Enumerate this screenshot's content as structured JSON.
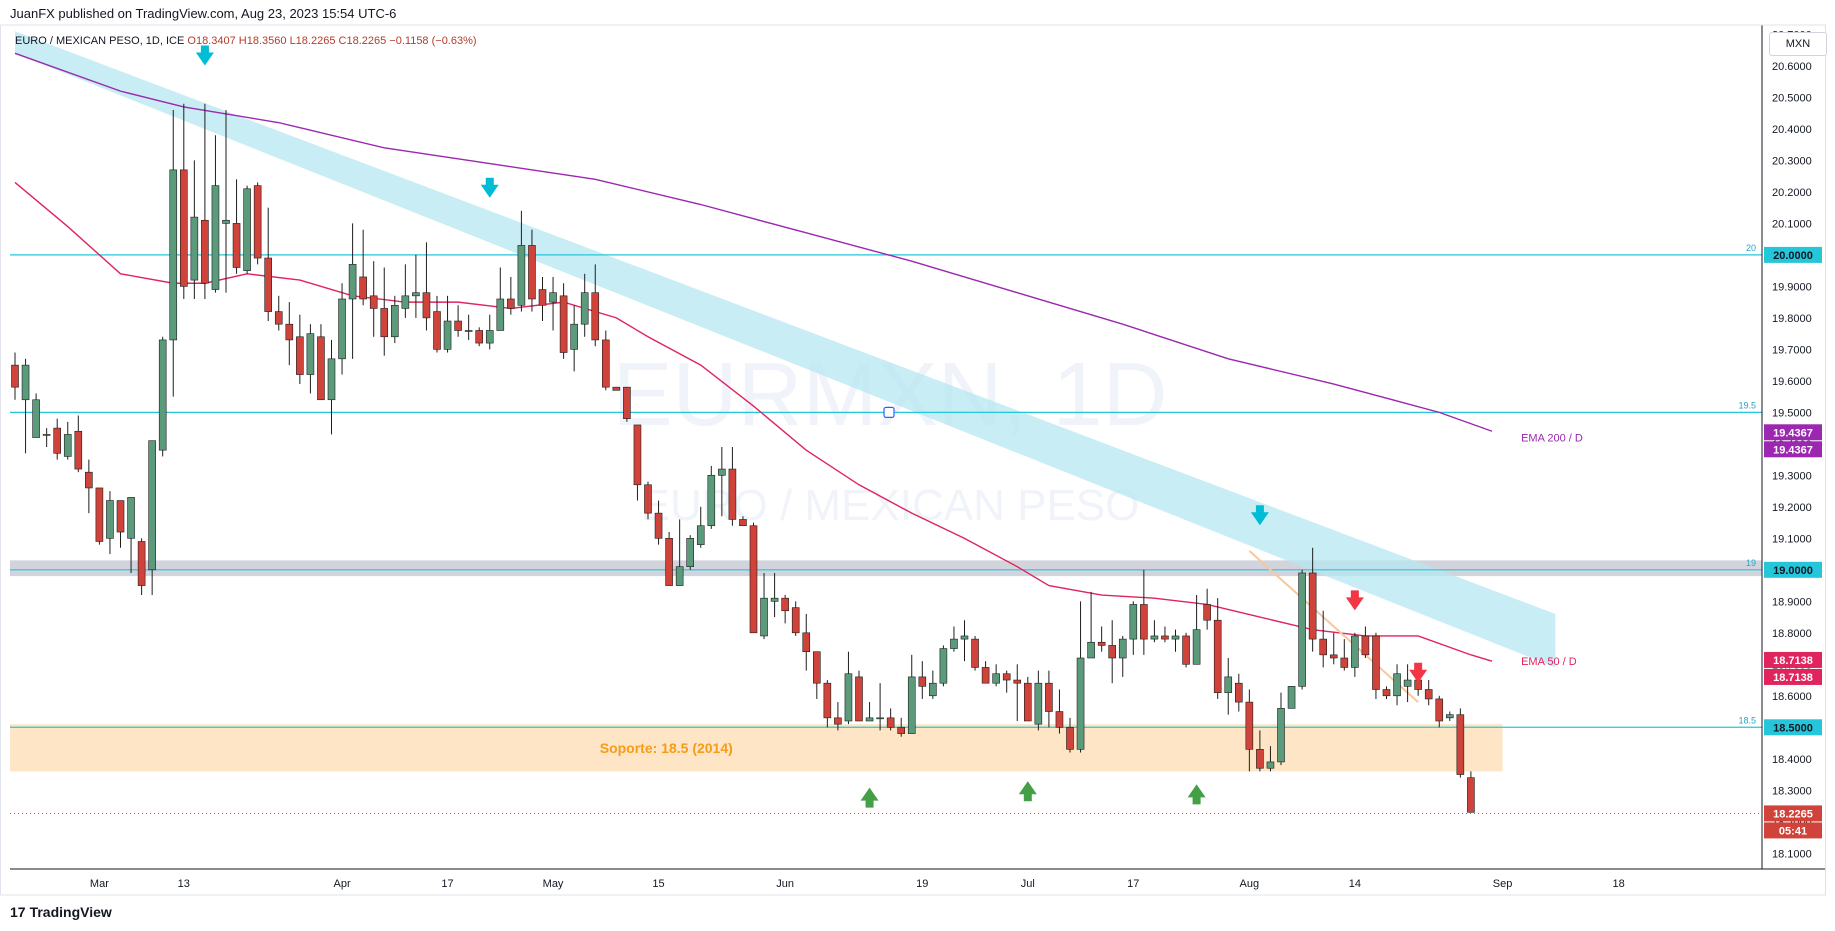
{
  "header": {
    "published": "JuanFX published on TradingView.com, Aug 23, 2023 15:54 UTC-6"
  },
  "symbol": {
    "name": "EURO / MEXICAN PESO, 1D, ICE",
    "open": "O18.3407",
    "high": "H18.3560",
    "low": "L18.2265",
    "close": "C18.2265",
    "change": "−0.1158 (−0.63%)"
  },
  "currency": "MXN",
  "watermark": {
    "ticker": "EURMXN, 1D",
    "name": "EURO / MEXICAN PESO"
  },
  "footer": {
    "brand": "TradingView",
    "mark": "17"
  },
  "colors": {
    "up": "#5b9a7b",
    "down": "#d0433a",
    "ema50": "#e0245e",
    "ema200": "#9c27b0",
    "channel": "#b7e7f0",
    "hline": "#26c6da",
    "support": "#fde5c5",
    "support_text": "#f59c1a"
  },
  "chart_data": {
    "type": "candlestick",
    "title": "EURO / MEXICAN PESO, 1D, ICE",
    "ylim": [
      18.05,
      20.73
    ],
    "y_ticks": [
      18.1,
      18.2,
      18.3,
      18.4,
      18.5,
      18.6,
      18.7,
      18.8,
      18.9,
      19.0,
      19.1,
      19.2,
      19.3,
      19.4,
      19.5,
      19.6,
      19.7,
      19.8,
      19.9,
      20.0,
      20.1,
      20.2,
      20.3,
      20.4,
      20.5,
      20.6,
      20.7
    ],
    "x_start": "2023-02-17",
    "x_labels": [
      {
        "label": "Mar",
        "index": 8
      },
      {
        "label": "13",
        "index": 16
      },
      {
        "label": "Apr",
        "index": 31
      },
      {
        "label": "17",
        "index": 41
      },
      {
        "label": "May",
        "index": 51
      },
      {
        "label": "15",
        "index": 61
      },
      {
        "label": "Jun",
        "index": 73
      },
      {
        "label": "19",
        "index": 86
      },
      {
        "label": "Jul",
        "index": 96
      },
      {
        "label": "17",
        "index": 106
      },
      {
        "label": "Aug",
        "index": 117
      },
      {
        "label": "14",
        "index": 127
      },
      {
        "label": "Sep",
        "index": 141
      },
      {
        "label": "18",
        "index": 152
      }
    ],
    "candles": [
      [
        19.65,
        19.58,
        19.69,
        19.54
      ],
      [
        19.54,
        19.65,
        19.67,
        19.37
      ],
      [
        19.42,
        19.54,
        19.56,
        19.42
      ],
      [
        19.43,
        19.43,
        19.45,
        19.39
      ],
      [
        19.45,
        19.37,
        19.48,
        19.35
      ],
      [
        19.36,
        19.43,
        19.47,
        19.35
      ],
      [
        19.44,
        19.32,
        19.49,
        19.31
      ],
      [
        19.31,
        19.26,
        19.35,
        19.18
      ],
      [
        19.26,
        19.09,
        19.26,
        19.08
      ],
      [
        19.1,
        19.22,
        19.25,
        19.05
      ],
      [
        19.22,
        19.12,
        19.22,
        19.07
      ],
      [
        19.1,
        19.23,
        19.23,
        18.99
      ],
      [
        19.09,
        18.95,
        19.1,
        18.92
      ],
      [
        19.0,
        19.41,
        19.41,
        18.92
      ],
      [
        19.38,
        19.73,
        19.74,
        19.36
      ],
      [
        19.73,
        20.27,
        20.46,
        19.55
      ],
      [
        20.27,
        19.9,
        20.48,
        19.86
      ],
      [
        19.92,
        20.12,
        20.3,
        19.86
      ],
      [
        20.11,
        19.91,
        20.48,
        19.86
      ],
      [
        19.89,
        20.22,
        20.38,
        19.88
      ],
      [
        20.1,
        20.11,
        20.46,
        19.88
      ],
      [
        20.1,
        19.96,
        20.24,
        19.94
      ],
      [
        19.95,
        20.21,
        20.22,
        19.94
      ],
      [
        20.22,
        19.99,
        20.23,
        19.97
      ],
      [
        19.99,
        19.82,
        20.15,
        19.79
      ],
      [
        19.82,
        19.78,
        19.87,
        19.76
      ],
      [
        19.78,
        19.73,
        19.85,
        19.65
      ],
      [
        19.74,
        19.62,
        19.81,
        19.59
      ],
      [
        19.62,
        19.75,
        19.78,
        19.56
      ],
      [
        19.74,
        19.54,
        19.78,
        19.54
      ],
      [
        19.54,
        19.67,
        19.73,
        19.43
      ],
      [
        19.67,
        19.86,
        19.91,
        19.62
      ],
      [
        19.86,
        19.97,
        20.1,
        19.67
      ],
      [
        19.93,
        19.86,
        20.08,
        19.84
      ],
      [
        19.87,
        19.83,
        19.98,
        19.74
      ],
      [
        19.83,
        19.74,
        19.96,
        19.68
      ],
      [
        19.74,
        19.84,
        19.87,
        19.72
      ],
      [
        19.83,
        19.87,
        19.97,
        19.8
      ],
      [
        19.87,
        19.88,
        20.0,
        19.8
      ],
      [
        19.88,
        19.8,
        20.04,
        19.76
      ],
      [
        19.82,
        19.7,
        19.87,
        19.69
      ],
      [
        19.7,
        19.79,
        19.87,
        19.69
      ],
      [
        19.79,
        19.76,
        19.84,
        19.74
      ],
      [
        19.76,
        19.76,
        19.81,
        19.73
      ],
      [
        19.76,
        19.72,
        19.77,
        19.71
      ],
      [
        19.72,
        19.76,
        19.81,
        19.7
      ],
      [
        19.76,
        19.86,
        19.96,
        19.76
      ],
      [
        19.86,
        19.83,
        19.93,
        19.81
      ],
      [
        19.84,
        20.03,
        20.14,
        19.82
      ],
      [
        20.03,
        19.86,
        20.08,
        19.82
      ],
      [
        19.89,
        19.84,
        19.93,
        19.79
      ],
      [
        19.85,
        19.88,
        19.93,
        19.76
      ],
      [
        19.87,
        19.69,
        19.91,
        19.67
      ],
      [
        19.7,
        19.78,
        19.84,
        19.63
      ],
      [
        19.78,
        19.88,
        19.94,
        19.74
      ],
      [
        19.88,
        19.73,
        19.97,
        19.71
      ],
      [
        19.73,
        19.58,
        19.76,
        19.57
      ],
      [
        19.58,
        19.57,
        19.58,
        19.57
      ],
      [
        19.58,
        19.48,
        19.58,
        19.47
      ],
      [
        19.46,
        19.27,
        19.46,
        19.22
      ],
      [
        19.27,
        19.18,
        19.28,
        19.16
      ],
      [
        19.18,
        19.1,
        19.22,
        19.08
      ],
      [
        19.1,
        18.95,
        19.12,
        18.95
      ],
      [
        18.95,
        19.01,
        19.16,
        18.95
      ],
      [
        19.01,
        19.1,
        19.11,
        19.0
      ],
      [
        19.08,
        19.14,
        19.2,
        19.07
      ],
      [
        19.14,
        19.3,
        19.33,
        19.13
      ],
      [
        19.3,
        19.32,
        19.39,
        19.17
      ],
      [
        19.32,
        19.16,
        19.39,
        19.14
      ],
      [
        19.16,
        19.14,
        19.17,
        19.14
      ],
      [
        19.14,
        18.8,
        19.15,
        18.8
      ],
      [
        18.79,
        18.91,
        18.99,
        18.78
      ],
      [
        18.9,
        18.91,
        18.99,
        18.85
      ],
      [
        18.91,
        18.87,
        18.92,
        18.83
      ],
      [
        18.88,
        18.8,
        18.9,
        18.79
      ],
      [
        18.8,
        18.74,
        18.86,
        18.68
      ],
      [
        18.74,
        18.64,
        18.74,
        18.59
      ],
      [
        18.64,
        18.53,
        18.65,
        18.5
      ],
      [
        18.53,
        18.51,
        18.58,
        18.49
      ],
      [
        18.52,
        18.67,
        18.74,
        18.51
      ],
      [
        18.66,
        18.52,
        18.68,
        18.52
      ],
      [
        18.52,
        18.53,
        18.58,
        18.52
      ],
      [
        18.53,
        18.53,
        18.64,
        18.49
      ],
      [
        18.53,
        18.5,
        18.56,
        18.49
      ],
      [
        18.5,
        18.48,
        18.53,
        18.47
      ],
      [
        18.48,
        18.66,
        18.73,
        18.48
      ],
      [
        18.66,
        18.63,
        18.71,
        18.59
      ],
      [
        18.6,
        18.64,
        18.68,
        18.59
      ],
      [
        18.64,
        18.75,
        18.76,
        18.63
      ],
      [
        18.75,
        18.78,
        18.82,
        18.74
      ],
      [
        18.78,
        18.79,
        18.84,
        18.71
      ],
      [
        18.78,
        18.69,
        18.79,
        18.68
      ],
      [
        18.69,
        18.64,
        18.71,
        18.64
      ],
      [
        18.64,
        18.67,
        18.7,
        18.63
      ],
      [
        18.67,
        18.65,
        18.68,
        18.61
      ],
      [
        18.65,
        18.64,
        18.7,
        18.52
      ],
      [
        18.64,
        18.52,
        18.66,
        18.52
      ],
      [
        18.51,
        18.64,
        18.68,
        18.49
      ],
      [
        18.64,
        18.55,
        18.68,
        18.5
      ],
      [
        18.55,
        18.5,
        18.62,
        18.48
      ],
      [
        18.5,
        18.43,
        18.53,
        18.42
      ],
      [
        18.43,
        18.72,
        18.9,
        18.42
      ],
      [
        18.72,
        18.77,
        18.93,
        18.75
      ],
      [
        18.77,
        18.76,
        18.82,
        18.74
      ],
      [
        18.76,
        18.72,
        18.84,
        18.64
      ],
      [
        18.72,
        18.78,
        18.79,
        18.66
      ],
      [
        18.78,
        18.89,
        18.9,
        18.73
      ],
      [
        18.89,
        18.78,
        19.0,
        18.73
      ],
      [
        18.78,
        18.79,
        18.84,
        18.77
      ],
      [
        18.79,
        18.78,
        18.82,
        18.77
      ],
      [
        18.78,
        18.79,
        18.81,
        18.74
      ],
      [
        18.79,
        18.7,
        18.8,
        18.69
      ],
      [
        18.7,
        18.81,
        18.92,
        18.7
      ],
      [
        18.89,
        18.84,
        18.94,
        18.81
      ],
      [
        18.84,
        18.61,
        18.91,
        18.59
      ],
      [
        18.61,
        18.66,
        18.72,
        18.54
      ],
      [
        18.64,
        18.58,
        18.67,
        18.55
      ],
      [
        18.58,
        18.43,
        18.62,
        18.36
      ],
      [
        18.43,
        18.37,
        18.49,
        18.36
      ],
      [
        18.37,
        18.39,
        18.44,
        18.36
      ],
      [
        18.39,
        18.56,
        18.61,
        18.38
      ],
      [
        18.56,
        18.63,
        18.63,
        18.56
      ],
      [
        18.63,
        18.99,
        19.0,
        18.62
      ],
      [
        18.99,
        18.78,
        19.07,
        18.74
      ],
      [
        18.78,
        18.73,
        18.87,
        18.69
      ],
      [
        18.73,
        18.72,
        18.8,
        18.7
      ],
      [
        18.72,
        18.69,
        18.78,
        18.68
      ],
      [
        18.69,
        18.79,
        18.8,
        18.66
      ],
      [
        18.79,
        18.73,
        18.82,
        18.72
      ],
      [
        18.79,
        18.62,
        18.8,
        18.59
      ],
      [
        18.62,
        18.6,
        18.63,
        18.59
      ],
      [
        18.6,
        18.67,
        18.7,
        18.57
      ],
      [
        18.63,
        18.65,
        18.7,
        18.58
      ],
      [
        18.65,
        18.62,
        18.68,
        18.6
      ],
      [
        18.62,
        18.59,
        18.65,
        18.57
      ],
      [
        18.59,
        18.52,
        18.6,
        18.5
      ],
      [
        18.53,
        18.54,
        18.55,
        18.52
      ],
      [
        18.54,
        18.35,
        18.56,
        18.34
      ],
      [
        18.34,
        18.23,
        18.36,
        18.23
      ]
    ],
    "ema200": [
      [
        0,
        20.64
      ],
      [
        10,
        20.52
      ],
      [
        16,
        20.47
      ],
      [
        25,
        20.42
      ],
      [
        35,
        20.34
      ],
      [
        45,
        20.29
      ],
      [
        55,
        20.24
      ],
      [
        65,
        20.16
      ],
      [
        75,
        20.07
      ],
      [
        85,
        19.98
      ],
      [
        95,
        19.88
      ],
      [
        105,
        19.78
      ],
      [
        115,
        19.67
      ],
      [
        125,
        19.59
      ],
      [
        135,
        19.5
      ],
      [
        140,
        19.44
      ]
    ],
    "ema50": [
      [
        0,
        20.23
      ],
      [
        5,
        20.09
      ],
      [
        10,
        19.94
      ],
      [
        15,
        19.91
      ],
      [
        18,
        19.91
      ],
      [
        22,
        19.94
      ],
      [
        27,
        19.92
      ],
      [
        32,
        19.87
      ],
      [
        37,
        19.85
      ],
      [
        42,
        19.85
      ],
      [
        47,
        19.83
      ],
      [
        52,
        19.85
      ],
      [
        57,
        19.8
      ],
      [
        60,
        19.74
      ],
      [
        65,
        19.65
      ],
      [
        70,
        19.52
      ],
      [
        75,
        19.38
      ],
      [
        80,
        19.27
      ],
      [
        85,
        19.18
      ],
      [
        90,
        19.1
      ],
      [
        95,
        19.01
      ],
      [
        98,
        18.95
      ],
      [
        103,
        18.92
      ],
      [
        108,
        18.91
      ],
      [
        113,
        18.89
      ],
      [
        118,
        18.85
      ],
      [
        123,
        18.81
      ],
      [
        128,
        18.79
      ],
      [
        133,
        18.79
      ],
      [
        138,
        18.73
      ],
      [
        140,
        18.71
      ]
    ],
    "channel": {
      "upper_start": [
        0,
        20.71
      ],
      "upper_end": [
        146,
        18.86
      ],
      "lower_start": [
        0,
        20.64
      ],
      "lower_end": [
        146,
        18.69
      ]
    },
    "horizontal_lines": [
      {
        "value": 20.0,
        "label": "20",
        "price_tag": "20.0000"
      },
      {
        "value": 19.5,
        "label": "19.5",
        "price_tag": ""
      },
      {
        "value": 19.0,
        "label": "19",
        "price_tag": "19.0000"
      },
      {
        "value": 18.5,
        "label": "18.5",
        "price_tag": "18.5000"
      }
    ],
    "gray_zone": [
      18.98,
      19.03
    ],
    "support_zone": {
      "range": [
        18.36,
        18.51
      ],
      "x_end_index": 141,
      "label": "Soporte: 18.5 (2014)"
    },
    "current_line": 18.2265,
    "price_tags": [
      {
        "value": 19.4367,
        "text": "19.4367",
        "color": "#9c27b0"
      },
      {
        "value": 19.4367,
        "text": "19.4367",
        "color": "#9c27b0",
        "offset": 1
      },
      {
        "value": 18.7138,
        "text": "18.7138",
        "color": "#e0245e"
      },
      {
        "value": 18.7138,
        "text": "18.7138",
        "color": "#e0245e",
        "offset": 1
      },
      {
        "value": 18.2265,
        "text": "18.2265",
        "color": "#d0433a"
      },
      {
        "value": 18.2265,
        "text": "05:41",
        "color": "#d0433a",
        "offset": 1
      }
    ],
    "ema_labels": [
      {
        "text": "EMA 200 / D",
        "index": 142,
        "value": 19.42,
        "color": "#9c27b0"
      },
      {
        "text": "EMA 50 / D",
        "index": 142,
        "value": 18.71,
        "color": "#e0245e"
      }
    ],
    "arrows": [
      {
        "index": 18,
        "value": 20.63,
        "dir": "down",
        "color": "#00bcd4"
      },
      {
        "index": 45,
        "value": 20.21,
        "dir": "down",
        "color": "#00bcd4"
      },
      {
        "index": 118,
        "value": 19.17,
        "dir": "down",
        "color": "#00bcd4"
      },
      {
        "index": 127,
        "value": 18.9,
        "dir": "down",
        "color": "#f23645"
      },
      {
        "index": 133,
        "value": 18.67,
        "dir": "down",
        "color": "#f23645"
      },
      {
        "index": 81,
        "value": 18.28,
        "dir": "up",
        "color": "#43a047"
      },
      {
        "index": 96,
        "value": 18.3,
        "dir": "up",
        "color": "#43a047"
      },
      {
        "index": 112,
        "value": 18.29,
        "dir": "up",
        "color": "#43a047"
      }
    ],
    "trendline": {
      "from": [
        117,
        19.06
      ],
      "to": [
        133,
        18.58
      ],
      "color": "#f7c79b"
    }
  }
}
